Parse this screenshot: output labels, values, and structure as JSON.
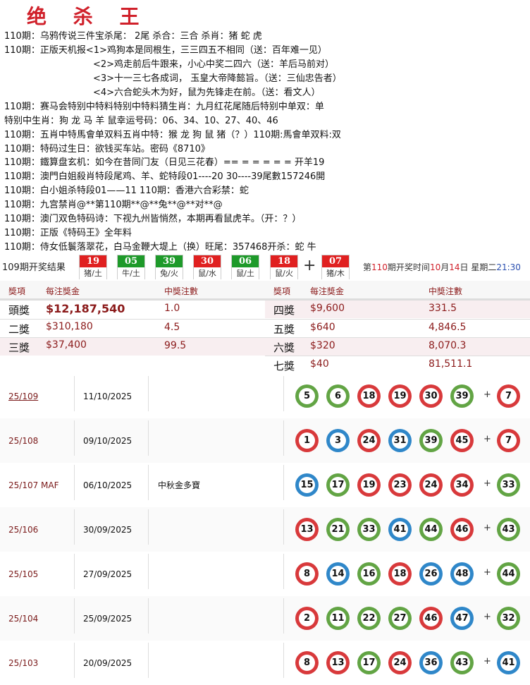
{
  "title": "绝 杀 王",
  "lines": [
    "110期：乌鸦传说三件宝杀尾：  2尾 杀合：三合 杀肖：猪 蛇 虎",
    "110期：正版天机报<1>鸡狗本是同根生，三三四五不相同（送：百年难一见）",
    "<2>鸡走前后牛跟来，小心中奖二四六（送：羊后马前对）",
    "<3>十一三七各成词， 玉皇大帝降懿旨。（送：三仙忠告者）",
    "<4>六合蛇头木为好，鼠为先锋走在前。（送：看文人）",
    "110期：赛马会特别中特料特别中特料猜生肖：九月红花尾随后特别中单双：单",
    "特别中生肖：狗 龙 马 羊 鼠幸运号码：06、34、10、27、40、46",
    "110期：五肖中特馬會单双料五肖中特：猴 龙 狗 鼠 猪（？）110期:馬會单双料:双",
    "110期：特码过生日：欲钱买车站。密码《8710》",
    "110期：鐵算盘玄机：如今在昔同门友（日见三花春）== = = = = = 开羊19",
    "110期：澳門白姐殺肖特段尾鸡、羊、蛇特段01----20 30----39尾數157246開",
    "110期：白小姐杀特段01——11          110期：香港六合彩禁：蛇",
    "110期：九宫禁肖@**第110期**@**兔**@**对**@",
    "110期：澳门双色特码诗：下视九州皆悄然，本期再看鼠虎羊。（开：？）",
    "110期：正版《特码王》全年料",
    "110期：侍女低鬟落翠花，白马金鞭大堤上（换）旺尾：357468开杀：蛇 牛"
  ],
  "result": {
    "label": "109期开奖结果",
    "balls": [
      {
        "num": "19",
        "zodiac": "猪/土",
        "color": "#e02020"
      },
      {
        "num": "05",
        "zodiac": "牛/土",
        "color": "#1e9a2a"
      },
      {
        "num": "39",
        "zodiac": "兔/火",
        "color": "#1e9a2a"
      },
      {
        "num": "30",
        "zodiac": "鼠/水",
        "color": "#e02020"
      },
      {
        "num": "06",
        "zodiac": "鼠/土",
        "color": "#1e9a2a"
      },
      {
        "num": "18",
        "zodiac": "鼠/火",
        "color": "#e02020"
      }
    ],
    "plus": "+",
    "special": {
      "num": "07",
      "zodiac": "猪/木",
      "color": "#e02020"
    },
    "next": {
      "p1": "第",
      "issue": "110",
      "p2": "期开奖时间",
      "month": "10",
      "p3": "月",
      "day": "14",
      "p4": "日 星期二",
      "time": "21:30"
    }
  },
  "prize": {
    "headers": [
      "獎項",
      "每注獎金",
      "中獎注數"
    ],
    "left": [
      {
        "name": "頭獎",
        "amount": "$12,187,540",
        "count": "1.0"
      },
      {
        "name": "二獎",
        "amount": "$310,180",
        "count": "4.5"
      },
      {
        "name": "三獎",
        "amount": "$37,400",
        "count": "99.5"
      }
    ],
    "right": [
      {
        "name": "四獎",
        "amount": "$9,600",
        "count": "331.5"
      },
      {
        "name": "五獎",
        "amount": "$640",
        "count": "4,846.5"
      },
      {
        "name": "六獎",
        "amount": "$320",
        "count": "8,070.3"
      },
      {
        "name": "七獎",
        "amount": "$40",
        "count": "81,511.1"
      }
    ]
  },
  "ball_colors": {
    "r": "#d8393b",
    "g": "#62a444",
    "b": "#2f87c9"
  },
  "history": [
    {
      "issue": "25/109",
      "date": "11/10/2025",
      "note": "",
      "nums": [
        "5",
        "6",
        "18",
        "19",
        "30",
        "39"
      ],
      "colors": [
        "g",
        "g",
        "r",
        "r",
        "r",
        "g"
      ],
      "special": "7",
      "special_color": "r"
    },
    {
      "issue": "25/108",
      "date": "09/10/2025",
      "note": "",
      "nums": [
        "1",
        "3",
        "24",
        "31",
        "39",
        "45"
      ],
      "colors": [
        "r",
        "b",
        "r",
        "b",
        "g",
        "r"
      ],
      "special": "7",
      "special_color": "r"
    },
    {
      "issue": "25/107 MAF",
      "date": "06/10/2025",
      "note": "中秋金多寶",
      "nums": [
        "15",
        "17",
        "19",
        "23",
        "24",
        "34"
      ],
      "colors": [
        "b",
        "g",
        "r",
        "r",
        "r",
        "r"
      ],
      "special": "33",
      "special_color": "g"
    },
    {
      "issue": "25/106",
      "date": "30/09/2025",
      "note": "",
      "nums": [
        "13",
        "21",
        "33",
        "41",
        "44",
        "46"
      ],
      "colors": [
        "r",
        "g",
        "g",
        "b",
        "g",
        "r"
      ],
      "special": "43",
      "special_color": "g"
    },
    {
      "issue": "25/105",
      "date": "27/09/2025",
      "note": "",
      "nums": [
        "8",
        "14",
        "16",
        "18",
        "26",
        "48"
      ],
      "colors": [
        "r",
        "b",
        "g",
        "r",
        "b",
        "b"
      ],
      "special": "44",
      "special_color": "g"
    },
    {
      "issue": "25/104",
      "date": "25/09/2025",
      "note": "",
      "nums": [
        "2",
        "11",
        "22",
        "27",
        "46",
        "47"
      ],
      "colors": [
        "r",
        "g",
        "g",
        "g",
        "r",
        "b"
      ],
      "special": "32",
      "special_color": "g"
    },
    {
      "issue": "25/103",
      "date": "20/09/2025",
      "note": "",
      "nums": [
        "8",
        "13",
        "17",
        "24",
        "36",
        "43"
      ],
      "colors": [
        "r",
        "r",
        "g",
        "r",
        "b",
        "g"
      ],
      "special": "41",
      "special_color": "b"
    }
  ],
  "history_plus": "+"
}
